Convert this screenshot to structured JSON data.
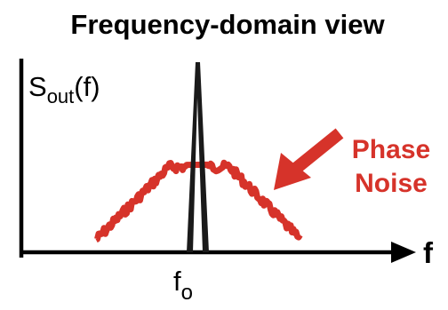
{
  "diagram": {
    "title": "Frequency-domain view",
    "y_axis_label": {
      "main": "S",
      "subscript": "out",
      "suffix": "(f)"
    },
    "x_axis_label": "f",
    "carrier_label": {
      "main": "f",
      "subscript": "o"
    },
    "annotation": {
      "line1": "Phase",
      "line2": "Noise"
    },
    "colors": {
      "axes": "#000000",
      "carrier": "#1a1a1a",
      "noise": "#d6332a",
      "annotation": "#d6332a",
      "text": "#000000"
    }
  }
}
